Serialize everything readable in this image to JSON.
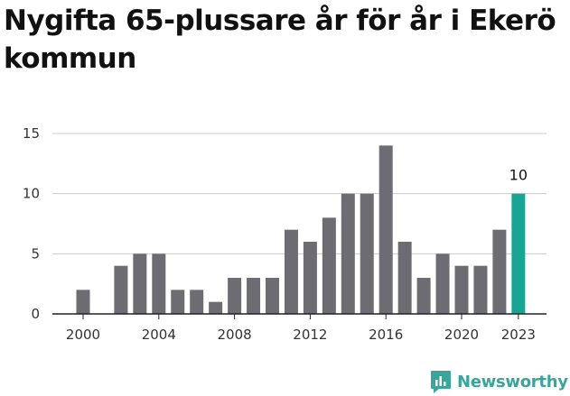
{
  "title": "Nygifta 65-plussare år för år i Ekerö kommun",
  "brand": {
    "name": "Newsworthy",
    "icon": "newsworthy-logo-icon",
    "color": "#3aa59a"
  },
  "chart_data": {
    "type": "bar",
    "title": "Nygifta 65-plussare år för år i Ekerö kommun",
    "xlabel": "",
    "ylabel": "",
    "categories": [
      2000,
      2001,
      2002,
      2003,
      2004,
      2005,
      2006,
      2007,
      2008,
      2009,
      2010,
      2011,
      2012,
      2013,
      2014,
      2015,
      2016,
      2017,
      2018,
      2019,
      2020,
      2021,
      2022,
      2023
    ],
    "values": [
      2,
      0,
      4,
      5,
      5,
      2,
      2,
      1,
      3,
      3,
      3,
      7,
      6,
      8,
      10,
      10,
      14,
      6,
      3,
      5,
      4,
      4,
      7,
      10
    ],
    "ylim": [
      0,
      15
    ],
    "y_ticks": [
      0,
      5,
      10,
      15
    ],
    "x_tick_labels": [
      "2000",
      "2004",
      "2008",
      "2012",
      "2016",
      "2020",
      "2023"
    ],
    "highlight": {
      "category": 2023,
      "label": "10"
    },
    "grid": "horizontal",
    "colors": {
      "bar": "#6d6c73",
      "highlight": "#19a594",
      "grid": "#cccccc",
      "axis": "#222222"
    }
  }
}
